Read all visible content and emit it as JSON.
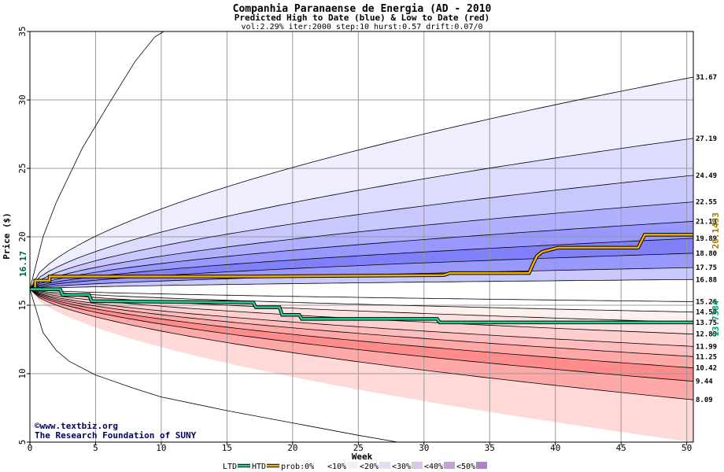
{
  "chart_data": {
    "type": "area",
    "title": "Companhia Paranaense de Energia (AD - 2010",
    "subtitle": "Predicted High to Date (blue) &  Low to Date (red)",
    "params": "vol:2.29% iter:2000 step:10 hurst:0.57 drift:0.07/0",
    "xlabel": "Week",
    "ylabel": "Price ($)",
    "xlim": [
      0,
      50.5
    ],
    "ylim": [
      5,
      35
    ],
    "x_ticks": [
      0,
      5,
      10,
      15,
      20,
      25,
      30,
      35,
      40,
      45,
      50
    ],
    "y_ticks": [
      5,
      10,
      15,
      20,
      25,
      30,
      35
    ],
    "grid": true,
    "start_price": 16.17,
    "start_label": "16.17",
    "upper_percentile_curves": [
      {
        "end": 31.67,
        "label": "31.67"
      },
      {
        "end": 27.19,
        "label": "27.19"
      },
      {
        "end": 24.49,
        "label": "24.49"
      },
      {
        "end": 22.55,
        "label": "22.55"
      },
      {
        "end": 21.13,
        "label": "21.13"
      },
      {
        "end": 19.89,
        "label": "19.89"
      },
      {
        "end": 18.8,
        "label": "18.80"
      },
      {
        "end": 17.75,
        "label": "17.75"
      },
      {
        "end": 16.88,
        "label": "16.88"
      }
    ],
    "lower_percentile_curves": [
      {
        "end": 15.26,
        "label": "15.26"
      },
      {
        "end": 14.5,
        "label": "14.50"
      },
      {
        "end": 13.75,
        "label": "13.75"
      },
      {
        "end": 12.89,
        "label": "12.89"
      },
      {
        "end": 11.99,
        "label": "11.99"
      },
      {
        "end": 11.25,
        "label": "11.25"
      },
      {
        "end": 10.42,
        "label": "10.42"
      },
      {
        "end": 9.44,
        "label": "9.44"
      },
      {
        "end": 8.09,
        "label": "8.09"
      }
    ],
    "outer_upper": {
      "x": [
        0,
        1,
        2,
        4,
        6,
        8,
        9.5,
        10.2
      ],
      "y": [
        16.17,
        20.0,
        22.5,
        26.5,
        29.7,
        32.8,
        34.6,
        35
      ]
    },
    "outer_lower": {
      "x": [
        0,
        1,
        2,
        3,
        5,
        8,
        10,
        15,
        20,
        25,
        28
      ],
      "y": [
        16.17,
        13.0,
        11.7,
        10.9,
        9.9,
        8.9,
        8.3,
        7.3,
        6.4,
        5.5,
        5.0
      ]
    },
    "series": [
      {
        "name": "HTD",
        "color": "#f0b000",
        "end_label": "20.1453",
        "x": [
          0,
          0.4,
          0.4,
          1.5,
          1.5,
          17,
          31.5,
          32,
          38,
          38.3,
          38.3,
          38.6,
          38.6,
          39,
          39,
          40.2,
          40.2,
          46.3,
          46.8,
          50.5
        ],
        "y": [
          16.17,
          16.17,
          16.8,
          16.8,
          17.1,
          17.1,
          17.2,
          17.35,
          17.35,
          18.0,
          18.0,
          18.6,
          18.6,
          18.9,
          18.9,
          19.2,
          19.2,
          19.2,
          20.15,
          20.15
        ]
      },
      {
        "name": "LTD",
        "color": "#20d090",
        "end_label": "13.7384",
        "x": [
          0,
          2.3,
          2.5,
          4.5,
          4.7,
          17,
          17.2,
          19,
          19.2,
          20.5,
          20.7,
          31,
          31.2,
          50.5
        ],
        "y": [
          16.17,
          16.17,
          15.75,
          15.75,
          15.3,
          15.2,
          14.85,
          14.85,
          14.3,
          14.3,
          14.0,
          14.0,
          13.74,
          13.74
        ]
      }
    ],
    "band_fills": {
      "upper": [
        "#ffffff",
        "#eeeeff",
        "#dcdcff",
        "#c8c8ff",
        "#b0b0ff",
        "#9898ff",
        "#8080f8",
        "#9898ff",
        "#c8c8ff"
      ],
      "lower": [
        "#ffffff",
        "#fff0f0",
        "#ffe0e0",
        "#ffcece",
        "#ffbcbc",
        "#ffa8a8",
        "#ff8c8c",
        "#ffa8a8",
        "#ffd8d8"
      ]
    }
  },
  "credits": {
    "line1": "©www.textbiz.org",
    "line2": "The Research Foundation of SUNY"
  },
  "legend": {
    "items": [
      {
        "label": "LTD",
        "type": "line",
        "color": "#20d090"
      },
      {
        "label": "HTD",
        "type": "line",
        "color": "#f0b000"
      },
      {
        "label": "prob:0%",
        "type": "swatch",
        "color": "#ffffff"
      },
      {
        "label": "<10%",
        "type": "swatch",
        "color": "#f4f0fa"
      },
      {
        "label": "<20%",
        "type": "swatch",
        "color": "#e8dcf4"
      },
      {
        "label": "<30%",
        "type": "swatch",
        "color": "#dcc4e8"
      },
      {
        "label": "<40%",
        "type": "swatch",
        "color": "#c8a0d8"
      },
      {
        "label": "<50%",
        "type": "swatch",
        "color": "#b080c8"
      }
    ]
  }
}
